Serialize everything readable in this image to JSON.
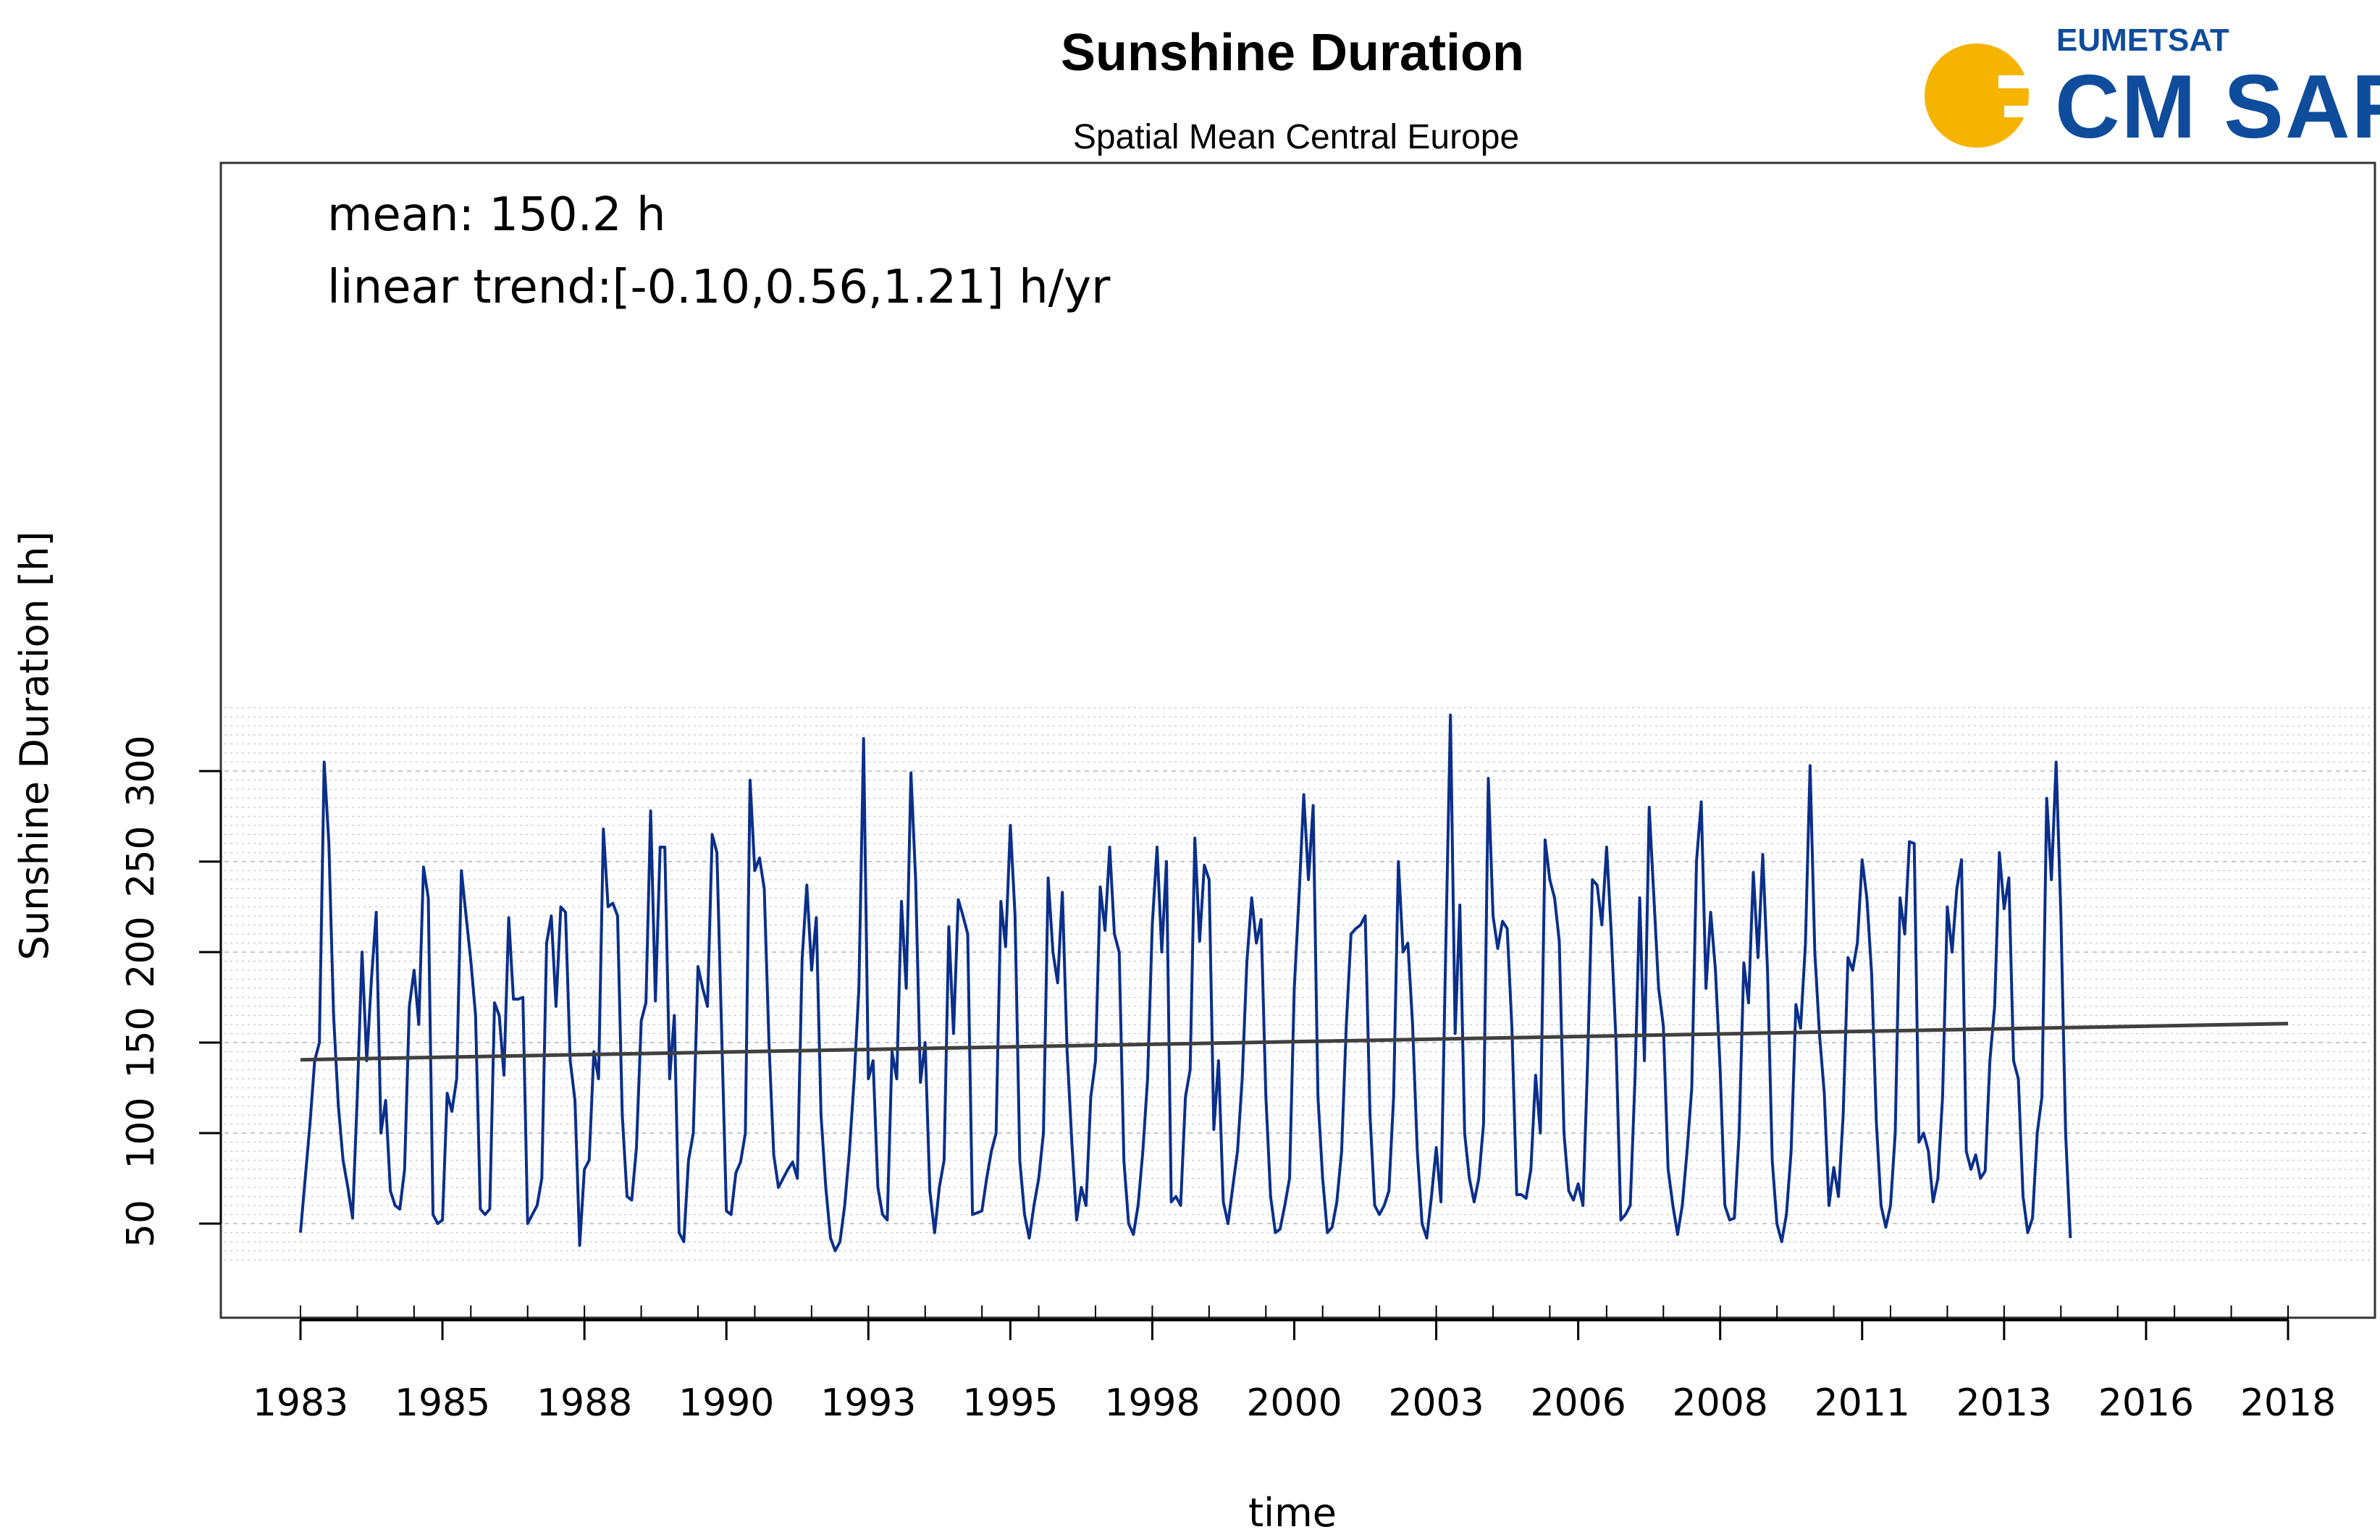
{
  "logo": {
    "org": "EUMETSAT",
    "name": "CM SAF",
    "sun_color": "#f6b400",
    "text_color": "#0f4c9c"
  },
  "colors": {
    "series": "#0b2f8a",
    "trend": "#404040",
    "grid": "#c8c8c8"
  },
  "chart_data": {
    "type": "line",
    "title": "Sunshine Duration",
    "subtitle": "Spatial Mean Central Europe",
    "xlabel": "time",
    "ylabel": "Sunshine Duration [h]",
    "xlim": [
      1983,
      2018
    ],
    "ylim": [
      25,
      340
    ],
    "x_ticks": [
      1983,
      1985.5,
      1988,
      1990.5,
      1993,
      1995.5,
      1998,
      2000.5,
      2003,
      2005.5,
      2008,
      2010.5,
      2013,
      2015.5,
      2018
    ],
    "x_tick_labels": [
      "1983",
      "1985",
      "1988",
      "1990",
      "1993",
      "1995",
      "1998",
      "2000",
      "2003",
      "2006",
      "2008",
      "2011",
      "2013",
      "2016",
      "2018"
    ],
    "y_ticks": [
      50,
      100,
      150,
      200,
      250,
      300
    ],
    "y_tick_labels": [
      "50",
      "100",
      "150",
      "200",
      "250",
      "300"
    ],
    "grid": true,
    "annotations": [
      "mean: 150.2 h",
      "linear trend:[-0.10,0.56,1.21] h/yr"
    ],
    "series": [
      {
        "x_start": 1983.0,
        "x_step": 0.08333333,
        "values": [
          45,
          75,
          105,
          140,
          150,
          305,
          260,
          165,
          115,
          85,
          70,
          53,
          120,
          200,
          140,
          185,
          222,
          100,
          118,
          68,
          60,
          58,
          80,
          170,
          190,
          160,
          247,
          230,
          55,
          50,
          52,
          122,
          112,
          130,
          245,
          220,
          195,
          165,
          58,
          55,
          58,
          172,
          165,
          132,
          219,
          174,
          174,
          175,
          50,
          55,
          60,
          75,
          205,
          220,
          170,
          225,
          222,
          140,
          118,
          38,
          80,
          85,
          145,
          130,
          268,
          225,
          227,
          220,
          110,
          65,
          63,
          92,
          162,
          172,
          278,
          173,
          258,
          258,
          130,
          165,
          45,
          40,
          85,
          100,
          192,
          180,
          170,
          265,
          255,
          155,
          57,
          55,
          78,
          84,
          100,
          295,
          245,
          252,
          235,
          150,
          88,
          70,
          75,
          80,
          84,
          75,
          196,
          237,
          190,
          219,
          110,
          70,
          42,
          35,
          40,
          60,
          90,
          130,
          180,
          318,
          130,
          140,
          70,
          55,
          52,
          145,
          130,
          228,
          180,
          299,
          240,
          128,
          150,
          68,
          45,
          70,
          85,
          214,
          155,
          229,
          220,
          210,
          55,
          56,
          57,
          75,
          90,
          100,
          228,
          203,
          270,
          220,
          85,
          55,
          42,
          60,
          75,
          100,
          241,
          200,
          183,
          233,
          145,
          95,
          52,
          70,
          60,
          120,
          140,
          236,
          212,
          258,
          210,
          200,
          85,
          50,
          44,
          60,
          90,
          130,
          215,
          258,
          200,
          250,
          62,
          65,
          60,
          120,
          135,
          263,
          206,
          248,
          240,
          102,
          140,
          62,
          50,
          70,
          90,
          130,
          195,
          230,
          205,
          218,
          120,
          65,
          45,
          47,
          60,
          75,
          180,
          230,
          287,
          240,
          281,
          120,
          75,
          45,
          48,
          62,
          90,
          160,
          210,
          213,
          215,
          220,
          110,
          60,
          55,
          60,
          68,
          120,
          250,
          200,
          205,
          160,
          90,
          50,
          42,
          65,
          92,
          62,
          200,
          331,
          155,
          226,
          100,
          75,
          62,
          75,
          105,
          296,
          220,
          202,
          217,
          213,
          158,
          66,
          66,
          64,
          80,
          132,
          100,
          262,
          240,
          230,
          206,
          100,
          68,
          63,
          72,
          60,
          140,
          240,
          237,
          215,
          258,
          210,
          150,
          52,
          55,
          60,
          130,
          230,
          140,
          280,
          230,
          180,
          159,
          80,
          60,
          44,
          60,
          90,
          125,
          250,
          283,
          180,
          222,
          190,
          135,
          60,
          52,
          53,
          100,
          194,
          172,
          244,
          197,
          254,
          190,
          85,
          50,
          40,
          55,
          90,
          171,
          158,
          204,
          303,
          200,
          154,
          122,
          60,
          81,
          65,
          110,
          197,
          190,
          205,
          251,
          230,
          188,
          106,
          60,
          48,
          60,
          100,
          230,
          210,
          261,
          260,
          95,
          100,
          90,
          62,
          75,
          120,
          225,
          200,
          235,
          251,
          90,
          80,
          88,
          75,
          79,
          140,
          170,
          255,
          224,
          241,
          140,
          130,
          65,
          45,
          53,
          100,
          120,
          285,
          240,
          305,
          220,
          100,
          42
        ]
      },
      {
        "name": "trend",
        "x": [
          1983,
          2018
        ],
        "values": [
          140.5,
          160.5
        ]
      }
    ]
  }
}
